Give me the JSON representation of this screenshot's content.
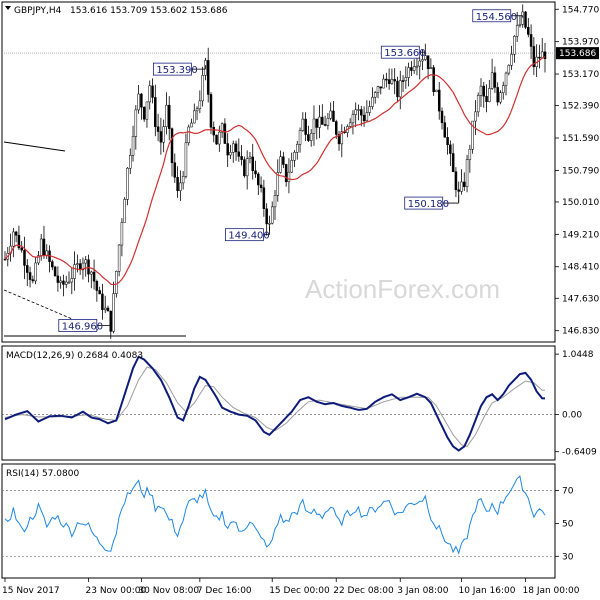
{
  "chart_data": {
    "type": "candlestick",
    "symbol_header": "GBPJPY,H4",
    "ohlc_header": "153.616 153.709 153.602 153.686",
    "last_price_label": "153.686",
    "watermark": "ActionForex.com",
    "price_axis": {
      "min": 146.6,
      "max": 154.9,
      "ticks": [
        "154.770",
        "153.970",
        "153.170",
        "152.390",
        "151.590",
        "150.790",
        "150.010",
        "149.210",
        "148.410",
        "147.630",
        "146.830"
      ]
    },
    "x_axis": {
      "ticks": [
        {
          "label": "15 Nov 2017",
          "bar": 0
        },
        {
          "label": "23 Nov 00:00",
          "bar": 30
        },
        {
          "label": "30 Nov 08:00",
          "bar": 49
        },
        {
          "label": "7 Dec 16:00",
          "bar": 70
        },
        {
          "label": "15 Dec 00:00",
          "bar": 96
        },
        {
          "label": "22 Dec 08:00",
          "bar": 119
        },
        {
          "label": "3 Jan 08:00",
          "bar": 142
        },
        {
          "label": "10 Jan 16:00",
          "bar": 164
        },
        {
          "label": "18 Jan 00:00",
          "bar": 187
        }
      ]
    },
    "price_annotations": [
      {
        "label": "153.390",
        "bar": 72,
        "price": 153.39
      },
      {
        "label": "149.400",
        "bar": 95,
        "price": 149.4
      },
      {
        "label": "146.960",
        "bar": 38,
        "price": 146.96
      },
      {
        "label": "153.660",
        "bar": 151,
        "price": 153.66
      },
      {
        "label": "150.180",
        "bar": 163,
        "price": 150.18
      },
      {
        "label": "154.560",
        "bar": 186,
        "price": 154.56
      }
    ],
    "keypoints": [
      [
        0,
        148.6
      ],
      [
        3,
        149.3
      ],
      [
        6,
        148.8
      ],
      [
        10,
        148.0
      ],
      [
        13,
        149.0
      ],
      [
        16,
        148.5
      ],
      [
        20,
        147.9
      ],
      [
        24,
        148.2
      ],
      [
        28,
        148.6
      ],
      [
        31,
        148.3
      ],
      [
        34,
        147.6
      ],
      [
        37,
        147.2
      ],
      [
        38,
        146.96
      ],
      [
        40,
        148.3
      ],
      [
        42,
        149.6
      ],
      [
        44,
        150.8
      ],
      [
        46,
        151.8
      ],
      [
        48,
        152.6
      ],
      [
        50,
        152.2
      ],
      [
        52,
        152.9
      ],
      [
        54,
        152.0
      ],
      [
        56,
        151.5
      ],
      [
        58,
        152.3
      ],
      [
        60,
        151.0
      ],
      [
        62,
        150.2
      ],
      [
        64,
        150.8
      ],
      [
        66,
        151.8
      ],
      [
        68,
        152.1
      ],
      [
        70,
        152.6
      ],
      [
        72,
        153.39
      ],
      [
        74,
        152.0
      ],
      [
        76,
        151.5
      ],
      [
        78,
        151.8
      ],
      [
        80,
        151.3
      ],
      [
        82,
        151.5
      ],
      [
        84,
        151.0
      ],
      [
        86,
        150.8
      ],
      [
        88,
        151.2
      ],
      [
        90,
        150.6
      ],
      [
        92,
        150.2
      ],
      [
        94,
        149.6
      ],
      [
        95,
        149.4
      ],
      [
        97,
        150.3
      ],
      [
        99,
        151.0
      ],
      [
        101,
        150.6
      ],
      [
        103,
        151.0
      ],
      [
        105,
        151.5
      ],
      [
        107,
        152.0
      ],
      [
        109,
        151.7
      ],
      [
        111,
        152.0
      ],
      [
        114,
        151.9
      ],
      [
        117,
        152.1
      ],
      [
        120,
        151.6
      ],
      [
        123,
        152.0
      ],
      [
        126,
        152.3
      ],
      [
        129,
        152.1
      ],
      [
        132,
        152.5
      ],
      [
        135,
        152.9
      ],
      [
        138,
        153.1
      ],
      [
        141,
        152.7
      ],
      [
        144,
        153.2
      ],
      [
        147,
        153.5
      ],
      [
        151,
        153.66
      ],
      [
        153,
        153.2
      ],
      [
        155,
        152.6
      ],
      [
        157,
        152.1
      ],
      [
        159,
        151.4
      ],
      [
        161,
        150.7
      ],
      [
        163,
        150.18
      ],
      [
        165,
        150.5
      ],
      [
        167,
        151.4
      ],
      [
        169,
        152.3
      ],
      [
        171,
        152.8
      ],
      [
        173,
        152.4
      ],
      [
        175,
        153.1
      ],
      [
        177,
        152.6
      ],
      [
        179,
        153.0
      ],
      [
        181,
        153.5
      ],
      [
        183,
        154.1
      ],
      [
        185,
        154.4
      ],
      [
        186,
        154.56
      ],
      [
        188,
        154.1
      ],
      [
        190,
        153.4
      ],
      [
        192,
        153.6
      ],
      [
        194,
        153.69
      ]
    ],
    "macd": {
      "label": "MACD(12,26,9) 0.2684 0.4083",
      "ticks": [
        "1.0448",
        "0.00",
        "-0.6409"
      ],
      "min": -0.75,
      "max": 1.15,
      "macd_keys": [
        [
          0,
          -0.08
        ],
        [
          4,
          0.0
        ],
        [
          8,
          0.06
        ],
        [
          12,
          -0.12
        ],
        [
          16,
          -0.03
        ],
        [
          20,
          -0.02
        ],
        [
          24,
          -0.05
        ],
        [
          28,
          0.05
        ],
        [
          31,
          -0.05
        ],
        [
          34,
          -0.08
        ],
        [
          37,
          -0.15
        ],
        [
          40,
          -0.1
        ],
        [
          42,
          0.2
        ],
        [
          44,
          0.5
        ],
        [
          46,
          0.8
        ],
        [
          48,
          1.0
        ],
        [
          50,
          0.95
        ],
        [
          53,
          0.8
        ],
        [
          56,
          0.6
        ],
        [
          59,
          0.3
        ],
        [
          62,
          -0.05
        ],
        [
          64,
          -0.1
        ],
        [
          66,
          0.15
        ],
        [
          68,
          0.45
        ],
        [
          70,
          0.65
        ],
        [
          72,
          0.6
        ],
        [
          74,
          0.45
        ],
        [
          76,
          0.3
        ],
        [
          78,
          0.12
        ],
        [
          81,
          0.05
        ],
        [
          84,
          0.0
        ],
        [
          87,
          -0.02
        ],
        [
          90,
          -0.1
        ],
        [
          93,
          -0.3
        ],
        [
          95,
          -0.35
        ],
        [
          97,
          -0.25
        ],
        [
          100,
          -0.1
        ],
        [
          103,
          0.05
        ],
        [
          106,
          0.25
        ],
        [
          109,
          0.3
        ],
        [
          112,
          0.22
        ],
        [
          115,
          0.18
        ],
        [
          118,
          0.2
        ],
        [
          121,
          0.15
        ],
        [
          124,
          0.12
        ],
        [
          127,
          0.08
        ],
        [
          130,
          0.1
        ],
        [
          133,
          0.22
        ],
        [
          136,
          0.3
        ],
        [
          139,
          0.35
        ],
        [
          142,
          0.25
        ],
        [
          145,
          0.3
        ],
        [
          148,
          0.36
        ],
        [
          151,
          0.3
        ],
        [
          153,
          0.2
        ],
        [
          155,
          0.0
        ],
        [
          157,
          -0.2
        ],
        [
          159,
          -0.4
        ],
        [
          161,
          -0.55
        ],
        [
          163,
          -0.62
        ],
        [
          165,
          -0.55
        ],
        [
          167,
          -0.35
        ],
        [
          169,
          -0.1
        ],
        [
          171,
          0.15
        ],
        [
          173,
          0.3
        ],
        [
          175,
          0.35
        ],
        [
          177,
          0.25
        ],
        [
          179,
          0.35
        ],
        [
          181,
          0.5
        ],
        [
          183,
          0.6
        ],
        [
          185,
          0.7
        ],
        [
          187,
          0.72
        ],
        [
          189,
          0.6
        ],
        [
          191,
          0.4
        ],
        [
          193,
          0.28
        ]
      ],
      "signal_keys": [
        [
          0,
          -0.05
        ],
        [
          6,
          0.0
        ],
        [
          12,
          -0.04
        ],
        [
          18,
          -0.04
        ],
        [
          24,
          -0.03
        ],
        [
          30,
          0.0
        ],
        [
          36,
          -0.08
        ],
        [
          40,
          -0.1
        ],
        [
          44,
          0.15
        ],
        [
          48,
          0.6
        ],
        [
          51,
          0.82
        ],
        [
          54,
          0.78
        ],
        [
          58,
          0.55
        ],
        [
          62,
          0.2
        ],
        [
          65,
          0.05
        ],
        [
          68,
          0.2
        ],
        [
          72,
          0.5
        ],
        [
          75,
          0.48
        ],
        [
          78,
          0.3
        ],
        [
          82,
          0.12
        ],
        [
          86,
          0.02
        ],
        [
          90,
          -0.05
        ],
        [
          94,
          -0.22
        ],
        [
          97,
          -0.28
        ],
        [
          101,
          -0.15
        ],
        [
          105,
          0.05
        ],
        [
          109,
          0.22
        ],
        [
          113,
          0.25
        ],
        [
          118,
          0.2
        ],
        [
          124,
          0.15
        ],
        [
          130,
          0.1
        ],
        [
          136,
          0.22
        ],
        [
          142,
          0.3
        ],
        [
          148,
          0.3
        ],
        [
          152,
          0.3
        ],
        [
          155,
          0.15
        ],
        [
          158,
          -0.1
        ],
        [
          161,
          -0.35
        ],
        [
          164,
          -0.52
        ],
        [
          166,
          -0.55
        ],
        [
          169,
          -0.35
        ],
        [
          172,
          -0.05
        ],
        [
          175,
          0.2
        ],
        [
          179,
          0.3
        ],
        [
          183,
          0.45
        ],
        [
          187,
          0.58
        ],
        [
          190,
          0.55
        ],
        [
          193,
          0.42
        ]
      ]
    },
    "rsi": {
      "label": "RSI(14) 57.0800",
      "ticks": [
        "70",
        "50",
        "30"
      ],
      "min": 18,
      "max": 85,
      "keys": [
        [
          0,
          50
        ],
        [
          3,
          58
        ],
        [
          6,
          45
        ],
        [
          9,
          52
        ],
        [
          12,
          60
        ],
        [
          15,
          48
        ],
        [
          18,
          55
        ],
        [
          21,
          50
        ],
        [
          24,
          45
        ],
        [
          27,
          52
        ],
        [
          30,
          48
        ],
        [
          33,
          40
        ],
        [
          36,
          36
        ],
        [
          38,
          35
        ],
        [
          40,
          45
        ],
        [
          42,
          62
        ],
        [
          44,
          66
        ],
        [
          46,
          72
        ],
        [
          48,
          74
        ],
        [
          50,
          68
        ],
        [
          52,
          70
        ],
        [
          54,
          60
        ],
        [
          56,
          62
        ],
        [
          58,
          55
        ],
        [
          60,
          50
        ],
        [
          62,
          44
        ],
        [
          64,
          52
        ],
        [
          66,
          62
        ],
        [
          68,
          64
        ],
        [
          70,
          66
        ],
        [
          72,
          68
        ],
        [
          74,
          55
        ],
        [
          76,
          52
        ],
        [
          78,
          56
        ],
        [
          80,
          48
        ],
        [
          82,
          52
        ],
        [
          84,
          45
        ],
        [
          86,
          48
        ],
        [
          88,
          52
        ],
        [
          90,
          46
        ],
        [
          92,
          40
        ],
        [
          94,
          38
        ],
        [
          95,
          35
        ],
        [
          97,
          45
        ],
        [
          99,
          55
        ],
        [
          101,
          50
        ],
        [
          103,
          55
        ],
        [
          105,
          58
        ],
        [
          107,
          62
        ],
        [
          109,
          55
        ],
        [
          111,
          58
        ],
        [
          114,
          55
        ],
        [
          117,
          60
        ],
        [
          120,
          50
        ],
        [
          123,
          55
        ],
        [
          126,
          60
        ],
        [
          129,
          55
        ],
        [
          132,
          58
        ],
        [
          135,
          62
        ],
        [
          138,
          64
        ],
        [
          141,
          55
        ],
        [
          144,
          60
        ],
        [
          147,
          63
        ],
        [
          150,
          65
        ],
        [
          151,
          66
        ],
        [
          153,
          55
        ],
        [
          155,
          48
        ],
        [
          157,
          44
        ],
        [
          159,
          38
        ],
        [
          161,
          34
        ],
        [
          163,
          32
        ],
        [
          165,
          38
        ],
        [
          167,
          48
        ],
        [
          169,
          60
        ],
        [
          171,
          64
        ],
        [
          173,
          55
        ],
        [
          175,
          62
        ],
        [
          177,
          58
        ],
        [
          179,
          64
        ],
        [
          181,
          70
        ],
        [
          183,
          74
        ],
        [
          185,
          76
        ],
        [
          186,
          73
        ],
        [
          188,
          65
        ],
        [
          190,
          56
        ],
        [
          192,
          58
        ],
        [
          194,
          57
        ]
      ]
    }
  }
}
